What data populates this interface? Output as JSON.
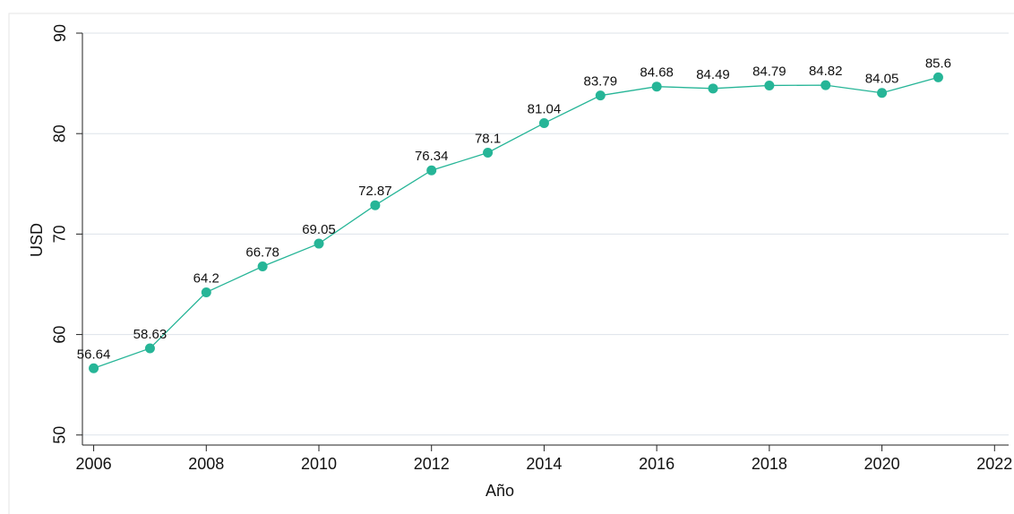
{
  "chart_data": {
    "type": "line",
    "xlabel": "Año",
    "ylabel": "USD",
    "x": [
      2006,
      2007,
      2008,
      2009,
      2010,
      2011,
      2012,
      2013,
      2014,
      2015,
      2016,
      2017,
      2018,
      2019,
      2020,
      2021
    ],
    "values": [
      56.64,
      58.63,
      64.2,
      66.78,
      69.05,
      72.87,
      76.34,
      78.1,
      81.04,
      83.79,
      84.68,
      84.49,
      84.79,
      84.82,
      84.05,
      85.6
    ],
    "color": "#26b597",
    "xlim": [
      2005.8,
      2022.25
    ],
    "xticks": [
      2006,
      2008,
      2010,
      2012,
      2014,
      2016,
      2018,
      2020,
      2022
    ],
    "ylim": [
      49,
      90
    ],
    "yticks": [
      50,
      60,
      70,
      80,
      90
    ],
    "grid": true
  }
}
